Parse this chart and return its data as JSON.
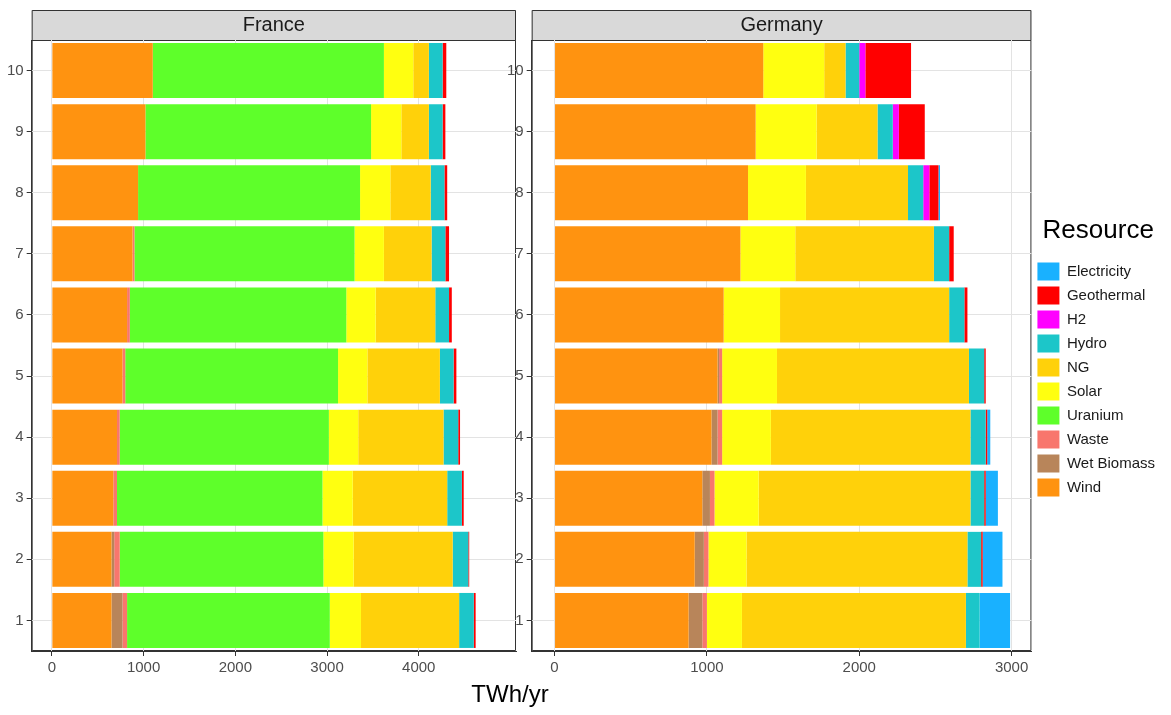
{
  "chart_data": [
    {
      "type": "bar",
      "title": "France",
      "xlabel": "TWh/yr",
      "orientation": "horizontal",
      "stacked": true,
      "grid": true,
      "legend": false,
      "categories": [
        "10",
        "9",
        "8",
        "7",
        "6",
        "5",
        "4",
        "3",
        "2",
        "1"
      ],
      "xlim": [
        -220,
        5060
      ],
      "xticks": [
        0,
        1000,
        2000,
        3000,
        4000
      ],
      "series": [
        {
          "color": "#ff9310",
          "values": [
            1100,
            1020,
            940,
            880,
            820,
            770,
            710,
            670,
            650,
            650
          ]
        },
        {
          "color": "#b8855a",
          "values": [
            0,
            0,
            0,
            0,
            0,
            0,
            0,
            0,
            30,
            120
          ]
        },
        {
          "color": "#f8766d",
          "values": [
            0,
            0,
            0,
            20,
            30,
            30,
            30,
            40,
            60,
            50
          ]
        },
        {
          "color": "#5eff2a",
          "values": [
            2520,
            2460,
            2420,
            2400,
            2360,
            2320,
            2280,
            2240,
            2220,
            2210
          ]
        },
        {
          "color": "#ffff10",
          "values": [
            320,
            330,
            330,
            320,
            320,
            320,
            320,
            330,
            330,
            340
          ]
        },
        {
          "color": "#ffd10a",
          "values": [
            170,
            300,
            440,
            520,
            650,
            790,
            930,
            1030,
            1080,
            1070
          ]
        },
        {
          "color": "#1cc6c9",
          "values": [
            150,
            150,
            150,
            150,
            150,
            150,
            160,
            160,
            170,
            160
          ]
        },
        {
          "color": "#ff0000",
          "values": [
            40,
            30,
            30,
            40,
            30,
            30,
            20,
            20,
            10,
            20
          ]
        }
      ]
    },
    {
      "type": "bar",
      "title": "Germany",
      "orientation": "horizontal",
      "stacked": true,
      "grid": true,
      "legend": "right",
      "legend_title": "Resource",
      "categories": [
        "10",
        "9",
        "8",
        "7",
        "6",
        "5",
        "4",
        "3",
        "2",
        "1"
      ],
      "xlim": [
        -150,
        3130
      ],
      "xticks": [
        0,
        1000,
        2000,
        3000
      ],
      "series": [
        {
          "name": "Wind",
          "color": "#ff9310",
          "values": [
            1370,
            1320,
            1270,
            1220,
            1110,
            1070,
            1030,
            970,
            920,
            880
          ]
        },
        {
          "name": "Wet Biomass",
          "color": "#b8855a",
          "values": [
            0,
            0,
            0,
            0,
            0,
            10,
            40,
            50,
            60,
            90
          ]
        },
        {
          "name": "Waste",
          "color": "#f8766d",
          "values": [
            0,
            0,
            0,
            0,
            0,
            20,
            30,
            30,
            30,
            30
          ]
        },
        {
          "name": "Uranium",
          "color": "#5eff2a",
          "values": [
            0,
            0,
            0,
            0,
            0,
            0,
            0,
            0,
            0,
            0
          ]
        },
        {
          "name": "Solar",
          "color": "#ffff10",
          "values": [
            400,
            400,
            380,
            360,
            370,
            360,
            320,
            290,
            250,
            230
          ]
        },
        {
          "name": "NG",
          "color": "#ffd10a",
          "values": [
            140,
            400,
            670,
            910,
            1110,
            1260,
            1310,
            1390,
            1450,
            1470
          ]
        },
        {
          "name": "Hydro",
          "color": "#1cc6c9",
          "values": [
            90,
            100,
            100,
            100,
            100,
            100,
            100,
            90,
            90,
            90
          ]
        },
        {
          "name": "H2",
          "color": "#ff00ff",
          "values": [
            40,
            40,
            40,
            0,
            0,
            0,
            0,
            0,
            0,
            0
          ]
        },
        {
          "name": "Geothermal",
          "color": "#ff0000",
          "values": [
            300,
            170,
            60,
            30,
            20,
            10,
            10,
            10,
            10,
            0
          ]
        },
        {
          "name": "Electricity",
          "color": "#19b1ff",
          "values": [
            0,
            0,
            10,
            0,
            0,
            0,
            20,
            80,
            130,
            200
          ]
        }
      ]
    }
  ]
}
